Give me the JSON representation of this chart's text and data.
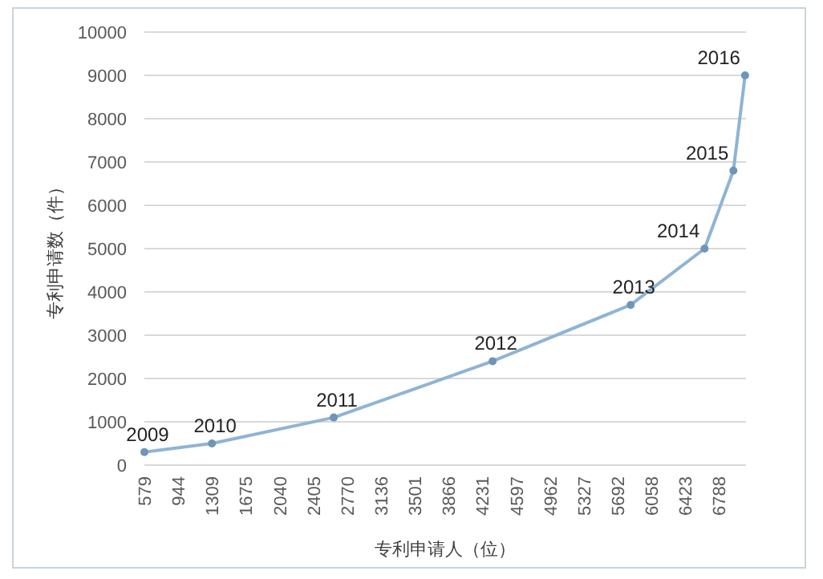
{
  "chart_data": {
    "type": "line",
    "xlabel": "专利申请人（位）",
    "ylabel": "专利申请数（件）",
    "x": [
      579,
      1309,
      2625,
      4342,
      5834,
      6632,
      6944,
      7070
    ],
    "values": [
      300,
      500,
      1100,
      2400,
      3700,
      5000,
      6800,
      9000
    ],
    "color": "#8fb4d4",
    "marker": "circle",
    "grid": "y",
    "xlim": [
      579,
      7080
    ],
    "xticks": [
      579,
      944,
      1309,
      1675,
      2040,
      2405,
      2770,
      3136,
      3501,
      3866,
      4231,
      4597,
      4962,
      5327,
      5692,
      6058,
      6423,
      6788
    ],
    "ylim": [
      0,
      10000
    ],
    "yticks": [
      0,
      1000,
      2000,
      3000,
      4000,
      5000,
      6000,
      7000,
      8000,
      9000,
      10000
    ],
    "annotations": [
      {
        "text": "2009",
        "x": 579,
        "y": 300
      },
      {
        "text": "2010",
        "x": 1309,
        "y": 500
      },
      {
        "text": "2011",
        "x": 2625,
        "y": 1100
      },
      {
        "text": "2012",
        "x": 4342,
        "y": 2400
      },
      {
        "text": "2013",
        "x": 5834,
        "y": 3700
      },
      {
        "text": "2014",
        "x": 6632,
        "y": 5000
      },
      {
        "text": "2015",
        "x": 6944,
        "y": 6800
      },
      {
        "text": "2016",
        "x": 7070,
        "y": 9000
      }
    ]
  }
}
